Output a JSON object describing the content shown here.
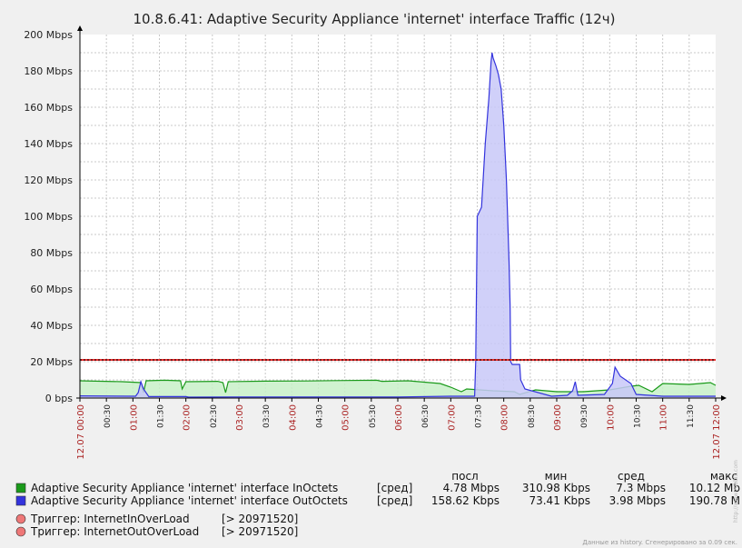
{
  "chart_data": {
    "type": "area",
    "title": "10.8.6.41: Adaptive Security Appliance 'internet' interface Traffic (12ч)",
    "y_unit": "Mbps",
    "ylim": [
      0,
      200
    ],
    "y_ticks": [
      "0 bps",
      "20 Mbps",
      "40 Mbps",
      "60 Mbps",
      "80 Mbps",
      "100 Mbps",
      "120 Mbps",
      "140 Mbps",
      "160 Mbps",
      "180 Mbps",
      "200 Mbps"
    ],
    "x_labels": [
      {
        "t": 0,
        "label": "12.07 00:00",
        "major": true,
        "edge": true
      },
      {
        "t": 0.5,
        "label": "00:30",
        "major": false
      },
      {
        "t": 1,
        "label": "01:00",
        "major": true
      },
      {
        "t": 1.5,
        "label": "01:30",
        "major": false
      },
      {
        "t": 2,
        "label": "02:00",
        "major": true
      },
      {
        "t": 2.5,
        "label": "02:30",
        "major": false
      },
      {
        "t": 3,
        "label": "03:00",
        "major": true
      },
      {
        "t": 3.5,
        "label": "03:30",
        "major": false
      },
      {
        "t": 4,
        "label": "04:00",
        "major": true
      },
      {
        "t": 4.5,
        "label": "04:30",
        "major": false
      },
      {
        "t": 5,
        "label": "05:00",
        "major": true
      },
      {
        "t": 5.5,
        "label": "05:30",
        "major": false
      },
      {
        "t": 6,
        "label": "06:00",
        "major": true
      },
      {
        "t": 6.5,
        "label": "06:30",
        "major": false
      },
      {
        "t": 7,
        "label": "07:00",
        "major": true
      },
      {
        "t": 7.5,
        "label": "07:30",
        "major": false
      },
      {
        "t": 8,
        "label": "08:00",
        "major": true
      },
      {
        "t": 8.5,
        "label": "08:30",
        "major": false
      },
      {
        "t": 9,
        "label": "09:00",
        "major": true
      },
      {
        "t": 9.5,
        "label": "09:30",
        "major": false
      },
      {
        "t": 10,
        "label": "10:00",
        "major": true
      },
      {
        "t": 10.5,
        "label": "10:30",
        "major": false
      },
      {
        "t": 11,
        "label": "11:00",
        "major": true
      },
      {
        "t": 11.5,
        "label": "11:30",
        "major": false
      },
      {
        "t": 12,
        "label": "12.07 12:00",
        "major": true,
        "edge": true
      }
    ],
    "series": [
      {
        "name": "Adaptive Security Appliance 'internet' interface InOctets",
        "color": "#1a9a1a",
        "fill": "#c8f0c8",
        "points": [
          [
            0,
            9.5
          ],
          [
            0.8,
            9.0
          ],
          [
            1.15,
            8.5
          ],
          [
            1.2,
            3
          ],
          [
            1.25,
            9.5
          ],
          [
            1.6,
            9.8
          ],
          [
            1.9,
            9.5
          ],
          [
            1.93,
            5
          ],
          [
            2.0,
            9
          ],
          [
            2.6,
            9.2
          ],
          [
            2.7,
            8.5
          ],
          [
            2.75,
            3
          ],
          [
            2.8,
            9
          ],
          [
            3.5,
            9.3
          ],
          [
            4.3,
            9.4
          ],
          [
            4.8,
            9.6
          ],
          [
            5.6,
            9.8
          ],
          [
            5.7,
            9.2
          ],
          [
            6.2,
            9.5
          ],
          [
            6.8,
            8
          ],
          [
            7.0,
            6
          ],
          [
            7.2,
            3.5
          ],
          [
            7.3,
            5
          ],
          [
            7.8,
            4
          ],
          [
            8.2,
            3.5
          ],
          [
            8.3,
            2
          ],
          [
            8.6,
            4.5
          ],
          [
            9.0,
            3.5
          ],
          [
            9.5,
            3.5
          ],
          [
            10.0,
            4.5
          ],
          [
            10.4,
            6.5
          ],
          [
            10.55,
            7
          ],
          [
            10.8,
            3.5
          ],
          [
            11.0,
            8
          ],
          [
            11.5,
            7.5
          ],
          [
            11.9,
            8.5
          ],
          [
            12,
            7
          ]
        ]
      },
      {
        "name": "Adaptive Security Appliance 'internet' interface OutOctets",
        "color": "#3333dd",
        "fill": "#c8c8f8",
        "points": [
          [
            0,
            1.2
          ],
          [
            1.05,
            1.0
          ],
          [
            1.1,
            3
          ],
          [
            1.15,
            9.0
          ],
          [
            1.2,
            5
          ],
          [
            1.3,
            0.8
          ],
          [
            2.0,
            0.8
          ],
          [
            2.05,
            0.5
          ],
          [
            3.0,
            0.6
          ],
          [
            6.0,
            0.6
          ],
          [
            7.0,
            1.0
          ],
          [
            7.45,
            1.0
          ],
          [
            7.47,
            20
          ],
          [
            7.5,
            100
          ],
          [
            7.58,
            105
          ],
          [
            7.65,
            140
          ],
          [
            7.72,
            165
          ],
          [
            7.76,
            185
          ],
          [
            7.78,
            190
          ],
          [
            7.8,
            187
          ],
          [
            7.85,
            183
          ],
          [
            7.9,
            178
          ],
          [
            7.95,
            170
          ],
          [
            8.0,
            150
          ],
          [
            8.05,
            120
          ],
          [
            8.1,
            75
          ],
          [
            8.12,
            50
          ],
          [
            8.13,
            20
          ],
          [
            8.16,
            18.5
          ],
          [
            8.3,
            18.5
          ],
          [
            8.32,
            10
          ],
          [
            8.4,
            5
          ],
          [
            8.9,
            1.0
          ],
          [
            9.2,
            1.5
          ],
          [
            9.3,
            4
          ],
          [
            9.35,
            9
          ],
          [
            9.4,
            1.5
          ],
          [
            9.9,
            2
          ],
          [
            10.05,
            8
          ],
          [
            10.1,
            17
          ],
          [
            10.2,
            12
          ],
          [
            10.4,
            8
          ],
          [
            10.5,
            2
          ],
          [
            11,
            1.0
          ],
          [
            12,
            1.0
          ]
        ]
      }
    ],
    "triggers": [
      {
        "name": "InternetInOverLoad",
        "threshold": 20971520
      },
      {
        "name": "InternetOutOverLoad",
        "threshold": 20971520
      }
    ],
    "trigger_line_mbps": 20.97,
    "legend_header": {
      "last": "посл",
      "min": "мин",
      "avg": "сред",
      "max": "макс"
    },
    "legend_rows": [
      {
        "color": "#1a9a1a",
        "name": "Adaptive Security Appliance 'internet' interface InOctets",
        "func": "[сред]",
        "last": "4.78 Mbps",
        "min": "310.98 Kbps",
        "avg": "7.3 Mbps",
        "max": "10.12 Mb"
      },
      {
        "color": "#3333dd",
        "name": "Adaptive Security Appliance 'internet' interface OutOctets",
        "func": "[сред]",
        "last": "158.62 Kbps",
        "min": "73.41 Kbps",
        "avg": "3.98 Mbps",
        "max": "190.78 M"
      }
    ],
    "trigger_rows": [
      {
        "color": "#ee7777",
        "label": "Триггер: InternetInOverLoad",
        "value": "[> 20971520]"
      },
      {
        "color": "#ee7777",
        "label": "Триггер: InternetOutOverLoad",
        "value": "[> 20971520]"
      }
    ],
    "footer": "Данные из history. Сгенерировано за 0.09 сек.",
    "watermark": "http://www.zabbix.com"
  }
}
